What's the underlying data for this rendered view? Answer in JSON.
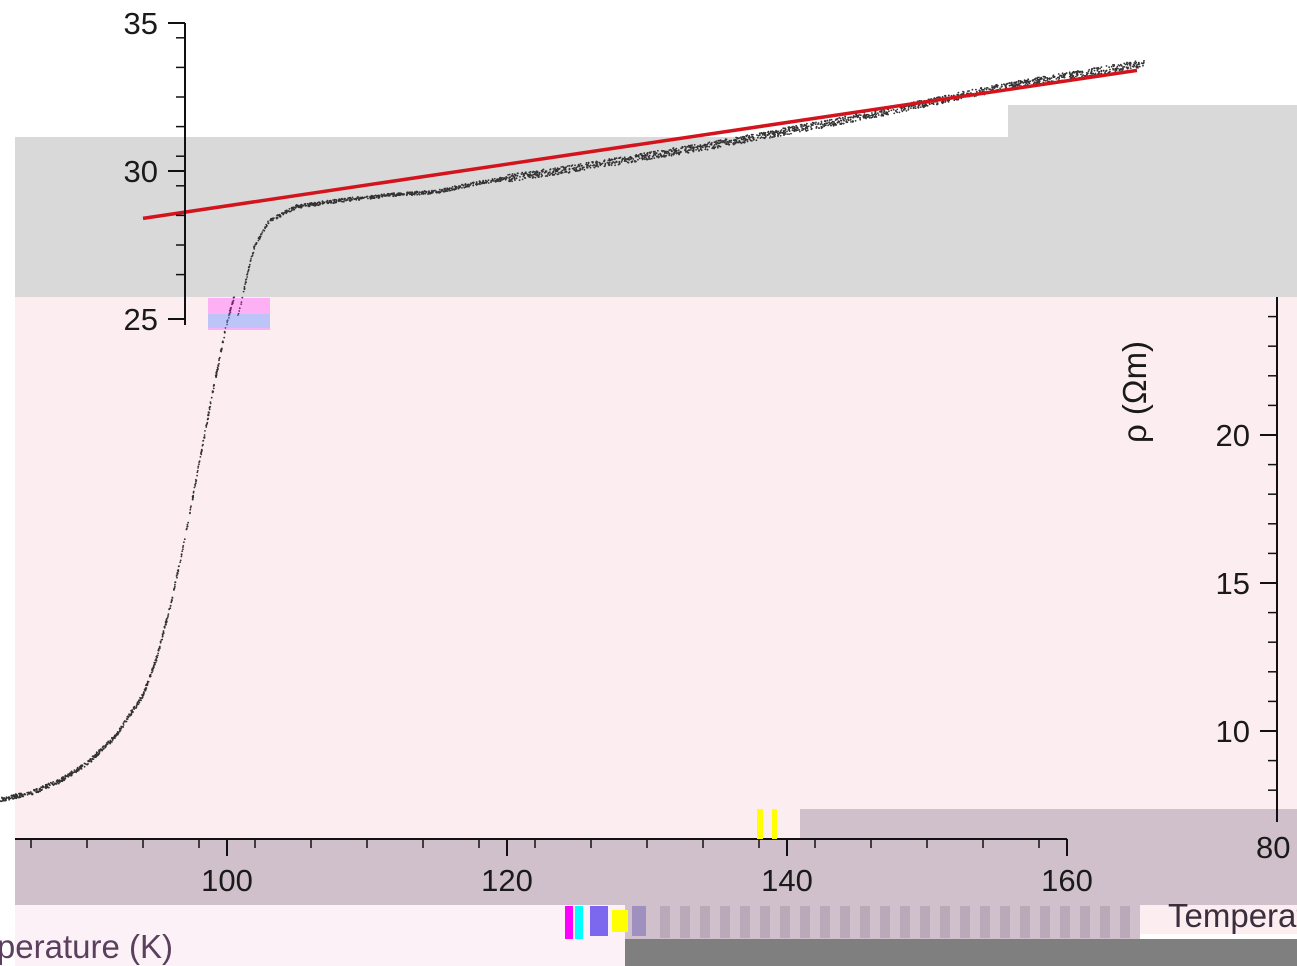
{
  "chart_data": [
    {
      "type": "scatter",
      "title": "",
      "xlabel": "Temperature (K)",
      "ylabel": "",
      "xlim": [
        80,
        166
      ],
      "ylim": [
        7.5,
        35
      ],
      "x_ticks": [
        "100",
        "120",
        "140",
        "160"
      ],
      "y_ticks": [
        "25",
        "30",
        "35"
      ],
      "grid": false,
      "series": [
        {
          "role": "measured-data",
          "color": "#333333",
          "marker": "dot",
          "x": [
            82,
            84,
            86,
            88,
            90,
            92,
            94,
            95,
            96,
            97,
            98,
            99,
            100,
            101,
            101.5,
            102,
            103,
            105,
            108,
            110,
            112,
            115,
            116,
            117,
            118,
            120,
            125,
            130,
            135,
            140,
            145,
            150,
            155,
            160,
            165
          ],
          "y": [
            7.6,
            7.7,
            7.9,
            8.3,
            8.9,
            9.8,
            11.2,
            12.5,
            14.3,
            16.5,
            19.0,
            21.5,
            23.8,
            25.5,
            26.6,
            27.5,
            28.3,
            28.8,
            29.0,
            29.1,
            29.2,
            29.3,
            29.4,
            29.5,
            29.6,
            29.75,
            30.1,
            30.5,
            30.9,
            31.35,
            31.8,
            32.3,
            32.8,
            33.2,
            33.6
          ]
        },
        {
          "role": "linear-fit",
          "color": "#d4141c",
          "x": [
            94,
            165
          ],
          "y": [
            28.4,
            33.4
          ]
        }
      ]
    },
    {
      "type": "scatter",
      "title": "",
      "xlabel": "Temperature (K)",
      "ylabel": "ρ (Ωm)",
      "xlim": [
        80,
        160
      ],
      "ylim": [
        7.5,
        25
      ],
      "x_ticks": [
        "80"
      ],
      "y_ticks": [
        "10",
        "15",
        "20"
      ],
      "grid": false,
      "series": []
    }
  ],
  "artifacts": {
    "gray_band": "#d9d9d9",
    "pink_panel": "#fcedf1",
    "mauve_band": "#cfc0cb",
    "dark_band": "#7f7f7f",
    "light_pink": "#fbf1f6",
    "tile_colors": [
      "#ff00ff",
      "#00ffff",
      "#ffff00",
      "#7b68ee",
      "#b0a0b0",
      "#a090c0"
    ]
  }
}
